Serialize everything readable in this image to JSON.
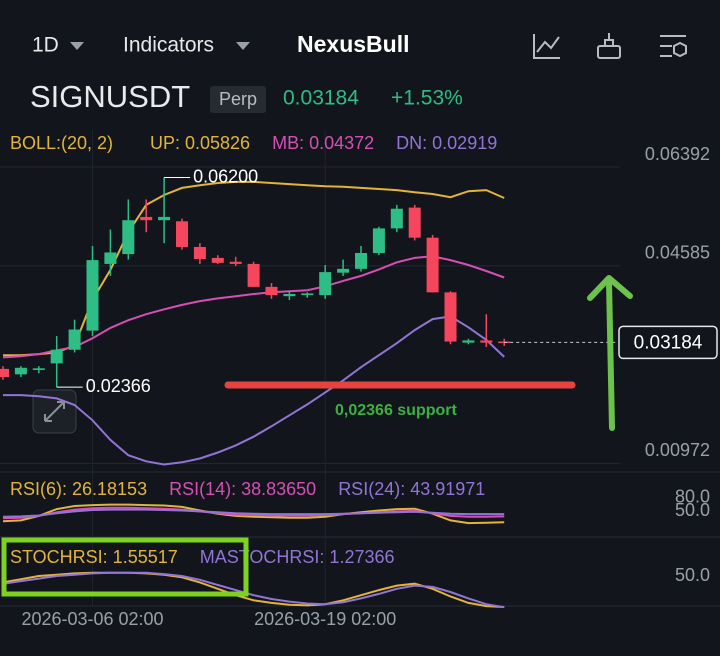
{
  "header": {
    "interval": "1D",
    "indicators": "Indicators",
    "brand": "NexusBull"
  },
  "symbol": {
    "name": "SIGNUSDT",
    "kind": "Perp",
    "price": "0.03184",
    "change": "+1.53%"
  },
  "chart_data": [
    {
      "type": "candlestick",
      "indicator": "BOLL:(20, 2)",
      "categories": [
        null,
        null,
        null,
        null,
        null,
        "2026-03-06 02:00",
        null,
        null,
        null,
        null,
        null,
        null,
        null,
        null,
        null,
        null,
        null,
        null,
        "2026-03-19 02:00",
        null,
        null,
        null,
        null,
        null,
        null,
        null,
        null,
        null,
        null
      ],
      "open": [
        0.027,
        0.026,
        0.0268,
        0.028,
        0.0305,
        0.034,
        0.0462,
        0.048,
        0.0548,
        0.0542,
        0.054,
        0.0493,
        0.0473,
        0.0466,
        0.0462,
        0.042,
        0.0403,
        0.0405,
        0.0405,
        0.0446,
        0.0453,
        0.0482,
        0.0527,
        0.0565,
        0.051,
        0.041,
        0.0318,
        0.0322,
        0.032
      ],
      "high": [
        0.0275,
        0.0275,
        0.0275,
        0.033,
        0.036,
        0.0495,
        0.0525,
        0.058,
        0.058,
        0.062,
        0.0545,
        0.05,
        0.0478,
        0.0475,
        0.0466,
        0.0427,
        0.0412,
        0.041,
        0.046,
        0.047,
        0.0495,
        0.053,
        0.057,
        0.057,
        0.0515,
        0.0412,
        0.0325,
        0.037,
        0.0325
      ],
      "low": [
        0.025,
        0.0255,
        0.0262,
        0.02366,
        0.03,
        0.033,
        0.044,
        0.047,
        0.052,
        0.05,
        0.0488,
        0.0462,
        0.0462,
        0.0458,
        0.0425,
        0.0398,
        0.0396,
        0.04,
        0.0398,
        0.044,
        0.0448,
        0.0478,
        0.052,
        0.0505,
        0.041,
        0.0315,
        0.0315,
        0.031,
        0.0312
      ],
      "close": [
        0.0255,
        0.0272,
        0.0271,
        0.0305,
        0.0342,
        0.0469,
        0.0483,
        0.0542,
        0.0542,
        0.0548,
        0.0493,
        0.0471,
        0.0464,
        0.0462,
        0.042,
        0.0405,
        0.0407,
        0.0408,
        0.0447,
        0.0453,
        0.0482,
        0.0527,
        0.0563,
        0.051,
        0.041,
        0.032,
        0.0322,
        0.0318,
        0.03184
      ],
      "up_color": "#2ebd85",
      "down_color": "#f6465d",
      "series": [
        {
          "name": "UP: 0.05826",
          "color": "#e2b53a",
          "values": [
            0.0295,
            0.0295,
            0.0297,
            0.03,
            0.0313,
            0.0396,
            0.0451,
            0.052,
            0.057,
            0.0588,
            0.0601,
            0.0606,
            0.061,
            0.0612,
            0.0612,
            0.061,
            0.0608,
            0.0606,
            0.0604,
            0.0603,
            0.0601,
            0.0599,
            0.0597,
            0.0593,
            0.059,
            0.0584,
            0.0595,
            0.0597,
            0.05826
          ]
        },
        {
          "name": "MB: 0.04372",
          "color": "#d64fb4",
          "values": [
            0.0291,
            0.0293,
            0.0297,
            0.0304,
            0.031,
            0.0326,
            0.0345,
            0.0359,
            0.037,
            0.0379,
            0.0387,
            0.0394,
            0.0399,
            0.0403,
            0.0407,
            0.041,
            0.0412,
            0.0414,
            0.0421,
            0.0431,
            0.044,
            0.0452,
            0.0465,
            0.0473,
            0.0476,
            0.0469,
            0.046,
            0.0449,
            0.04372
          ]
        },
        {
          "name": "DN: 0.02919",
          "color": "#9274d6",
          "values": [
            0.0222,
            0.0222,
            0.022,
            0.0216,
            0.0204,
            0.0176,
            0.014,
            0.0112,
            0.0101,
            0.0095,
            0.0099,
            0.0106,
            0.0117,
            0.013,
            0.0146,
            0.0165,
            0.0185,
            0.0205,
            0.0227,
            0.0249,
            0.0273,
            0.0295,
            0.0317,
            0.0341,
            0.0361,
            0.0366,
            0.0346,
            0.0323,
            0.02919
          ]
        }
      ],
      "ylim": [
        0.0085,
        0.0707
      ],
      "yticks": [
        0.06392,
        0.04585,
        0.00972
      ],
      "grid": true,
      "last_price": 0.03184,
      "high_label": "0.06200",
      "low_label": "0.02366",
      "annotation": "0,02366 support"
    },
    {
      "type": "line",
      "series": [
        {
          "name": "RSI(6): 26.18153",
          "color": "#e2b53a",
          "values": [
            28,
            30,
            40,
            55,
            62,
            64,
            65,
            65,
            64,
            63,
            60,
            52,
            45,
            40,
            38,
            37,
            36,
            36,
            38,
            44,
            48,
            52,
            55,
            56,
            45,
            30,
            24,
            25,
            26.18153
          ]
        },
        {
          "name": "RSI(14): 38.83650",
          "color": "#d64fb4",
          "values": [
            35,
            36,
            40,
            48,
            54,
            57,
            58,
            58,
            57,
            56,
            54,
            50,
            46,
            43,
            42,
            41,
            41,
            41,
            42,
            44,
            46,
            48,
            50,
            51,
            46,
            40,
            38,
            38,
            38.8365
          ]
        },
        {
          "name": "RSI(24): 43.91971",
          "color": "#9274d6",
          "values": [
            38,
            39,
            41,
            46,
            50,
            53,
            54,
            54,
            54,
            53,
            52,
            50,
            48,
            46,
            45,
            44,
            44,
            44,
            44,
            45,
            46,
            47,
            48,
            49,
            47,
            45,
            44,
            44,
            43.91971
          ]
        }
      ],
      "ylim": [
        0,
        115
      ],
      "yticks": [
        {
          "value": 80,
          "label": "80.0"
        },
        {
          "value": 50,
          "label": "50.0"
        }
      ]
    },
    {
      "type": "line",
      "series": [
        {
          "name": "STOCHRSI: 1.55517",
          "color": "#e2b53a",
          "values": [
            40,
            45,
            50,
            52,
            54,
            55,
            55,
            55,
            54,
            52,
            48,
            40,
            30,
            20,
            12,
            8,
            5,
            4,
            6,
            12,
            20,
            28,
            35,
            38,
            30,
            18,
            8,
            3,
            1.55517
          ]
        },
        {
          "name": "MASTOCHRSI: 1.27366",
          "color": "#9274d6",
          "values": [
            38,
            42,
            46,
            50,
            52,
            54,
            55,
            55,
            55,
            53,
            50,
            44,
            36,
            28,
            20,
            14,
            10,
            7,
            6,
            9,
            15,
            22,
            30,
            35,
            33,
            25,
            15,
            6,
            1.27366
          ]
        }
      ],
      "ylim": [
        0,
        100
      ],
      "yticks": [
        {
          "value": 50,
          "label": "50.0"
        }
      ]
    }
  ]
}
